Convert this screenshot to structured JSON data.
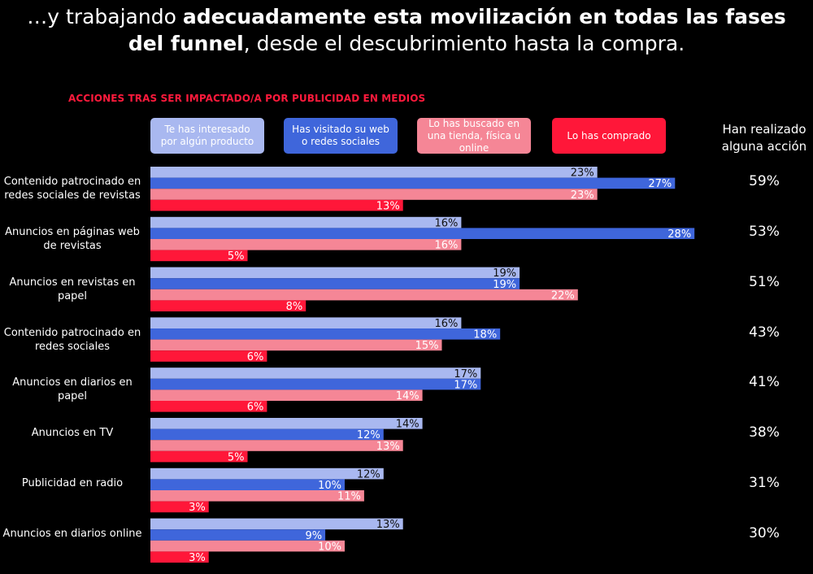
{
  "headline": {
    "part1": "…y trabajando ",
    "bold1": "adecuadamente esta movilización en todas las fases",
    "bold2": "del funnel",
    "part2": ", desde el descubrimiento hasta la compra."
  },
  "colors": {
    "interesado": "#a9b8f0",
    "visitado": "#3f66db",
    "buscado": "#f58696",
    "comprado": "#ff1739",
    "subtitle": "#ff1a3c"
  },
  "chart_data": {
    "type": "bar",
    "orientation": "horizontal",
    "title": "ACCIONES TRAS SER IMPACTADO/A POR PUBLICIDAD EN MEDIOS",
    "categories": [
      "Contenido patrocinado en redes sociales de revistas",
      "Anuncios en páginas web de revistas",
      "Anuncios en revistas en papel",
      "Contenido patrocinado en redes sociales",
      "Anuncios en diarios en papel",
      "Anuncios en TV",
      "Publicidad en radio",
      "Anuncios en diarios online"
    ],
    "series": [
      {
        "name": "Te has interesado por algún producto",
        "values": [
          23,
          16,
          19,
          16,
          17,
          14,
          12,
          13
        ]
      },
      {
        "name": "Has visitado su web o redes sociales",
        "values": [
          27,
          28,
          19,
          18,
          17,
          12,
          10,
          9
        ]
      },
      {
        "name": "Lo has buscado en una tienda, física u online",
        "values": [
          23,
          16,
          22,
          15,
          14,
          13,
          11,
          10
        ]
      },
      {
        "name": "Lo has comprado",
        "values": [
          13,
          5,
          8,
          6,
          6,
          5,
          3,
          3
        ]
      }
    ],
    "unit": "%",
    "xlim": [
      0,
      28
    ],
    "legend_position": "top",
    "grid": false,
    "totals_header": "Han realizado alguna acción",
    "totals": [
      59,
      53,
      51,
      43,
      41,
      38,
      31,
      30
    ]
  }
}
